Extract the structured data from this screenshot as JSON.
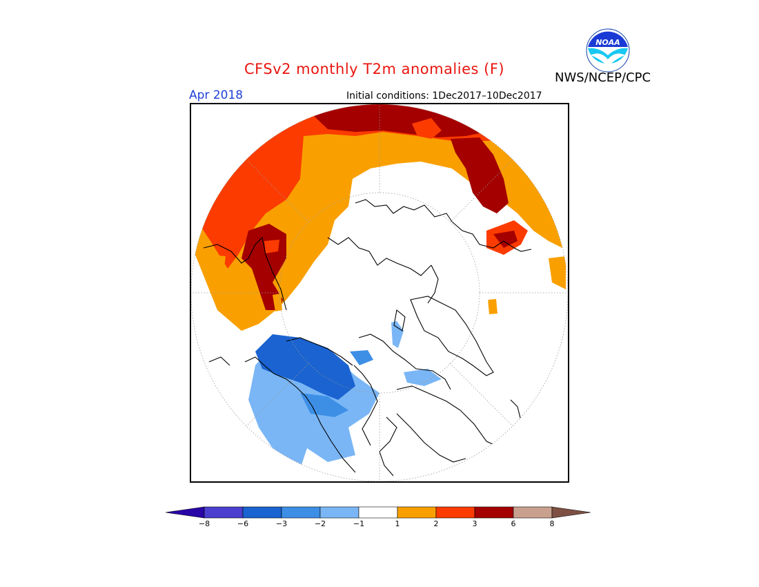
{
  "header": {
    "title": "CFSv2 monthly T2m anomalies (F)",
    "agency": "NWS/NCEP/CPC",
    "logo_text": "NOAA",
    "month": "Apr 2018",
    "initial_conditions": "Initial conditions: 1Dec2017–10Dec2017"
  },
  "colorbar": {
    "ticks": [
      "−8",
      "−6",
      "−3",
      "−2",
      "−1",
      "1",
      "2",
      "3",
      "6",
      "8"
    ],
    "colors": [
      "#2a05a8",
      "#4a3fcf",
      "#1a63d0",
      "#3d8fe6",
      "#7ab6f5",
      "#ffffff",
      "#f9a000",
      "#fb3b00",
      "#a40000",
      "#c9a08e",
      "#7d5043"
    ]
  },
  "map": {
    "projection": "north polar stereographic",
    "colors": {
      "deep_red": "#a40000",
      "red": "#fb3b00",
      "orange": "#f9a000",
      "dark_blue": "#1a63d0",
      "light_blue": "#7ab6f5",
      "mid_blue": "#3d8fe6"
    }
  }
}
